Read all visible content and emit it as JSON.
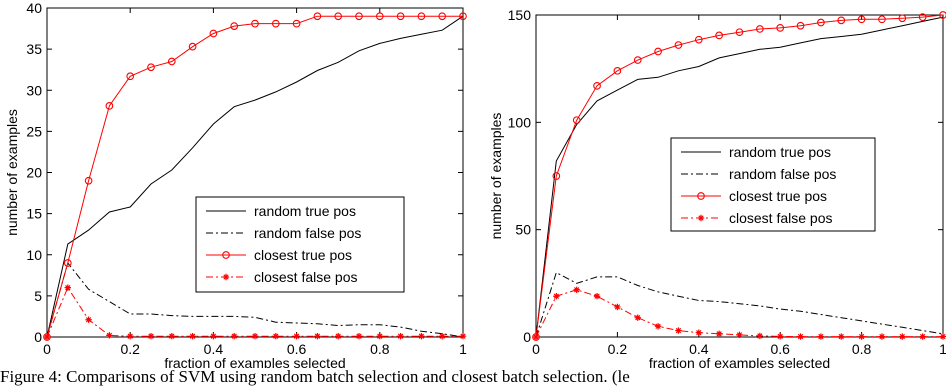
{
  "caption": "Figure 4:  Comparisons of SVM using random batch selection and closest batch selection.  (le",
  "chart_data": [
    {
      "type": "line",
      "xlabel": "fraction of examples selected",
      "ylabel": "number of examples",
      "xlim": [
        0,
        1
      ],
      "ylim": [
        0,
        40
      ],
      "xticks": [
        "0",
        "0.2",
        "0.4",
        "0.6",
        "0.8",
        "1"
      ],
      "yticks": [
        "0",
        "5",
        "10",
        "15",
        "20",
        "25",
        "30",
        "35",
        "40"
      ],
      "legend_position": "center-right",
      "series": [
        {
          "name": "random true pos",
          "color": "#000000",
          "style": "solid",
          "marker": "none",
          "x": [
            0,
            0.05,
            0.1,
            0.15,
            0.2,
            0.25,
            0.3,
            0.35,
            0.4,
            0.45,
            0.5,
            0.55,
            0.6,
            0.65,
            0.7,
            0.75,
            0.8,
            0.85,
            0.9,
            0.95,
            1.0
          ],
          "y": [
            0,
            11.3,
            13,
            15.2,
            15.8,
            18.6,
            20.3,
            23,
            25.9,
            28,
            28.8,
            29.8,
            31,
            32.4,
            33.4,
            34.8,
            35.7,
            36.3,
            36.8,
            37.3,
            39
          ]
        },
        {
          "name": "random false pos",
          "color": "#000000",
          "style": "dashdot",
          "marker": "none",
          "x": [
            0,
            0.05,
            0.1,
            0.15,
            0.2,
            0.25,
            0.3,
            0.35,
            0.4,
            0.45,
            0.5,
            0.55,
            0.6,
            0.65,
            0.7,
            0.75,
            0.8,
            0.85,
            0.9,
            0.95,
            1.0
          ],
          "y": [
            0,
            9,
            5.8,
            4.3,
            2.8,
            2.8,
            2.6,
            2.5,
            2.5,
            2.5,
            2.4,
            1.8,
            1.7,
            1.6,
            1.4,
            1.5,
            1.5,
            1.2,
            0.7,
            0.4,
            0
          ]
        },
        {
          "name": "closest true pos",
          "color": "#ff0000",
          "style": "solid",
          "marker": "circle",
          "x": [
            0,
            0.05,
            0.1,
            0.15,
            0.2,
            0.25,
            0.3,
            0.35,
            0.4,
            0.45,
            0.5,
            0.55,
            0.6,
            0.65,
            0.7,
            0.75,
            0.8,
            0.85,
            0.9,
            0.95,
            1.0
          ],
          "y": [
            0,
            9,
            19,
            28.1,
            31.7,
            32.8,
            33.5,
            35.3,
            36.9,
            37.8,
            38.1,
            38.1,
            38.1,
            39,
            39,
            39,
            39,
            39,
            39,
            39,
            39
          ]
        },
        {
          "name": "closest false pos",
          "color": "#ff0000",
          "style": "dashdot",
          "marker": "star",
          "x": [
            0,
            0.05,
            0.1,
            0.15,
            0.2,
            0.25,
            0.3,
            0.35,
            0.4,
            0.45,
            0.5,
            0.55,
            0.6,
            0.65,
            0.7,
            0.75,
            0.8,
            0.85,
            0.9,
            0.95,
            1.0
          ],
          "y": [
            0,
            6,
            2.1,
            0.2,
            0.1,
            0.1,
            0.1,
            0.1,
            0.1,
            0.1,
            0.1,
            0.1,
            0.1,
            0.1,
            0.1,
            0.1,
            0.1,
            0.1,
            0.1,
            0.1,
            0.1
          ]
        }
      ]
    },
    {
      "type": "line",
      "xlabel": "fraction of examples selected",
      "ylabel": "number of examples",
      "xlim": [
        0,
        1
      ],
      "ylim": [
        0,
        150
      ],
      "xticks": [
        "0",
        "0.2",
        "0.4",
        "0.6",
        "0.8",
        "1"
      ],
      "yticks": [
        "0",
        "50",
        "100",
        "150"
      ],
      "legend_position": "center-right",
      "series": [
        {
          "name": "random true pos",
          "color": "#000000",
          "style": "solid",
          "marker": "none",
          "x": [
            0,
            0.05,
            0.1,
            0.15,
            0.2,
            0.25,
            0.3,
            0.35,
            0.4,
            0.45,
            0.5,
            0.55,
            0.6,
            0.65,
            0.7,
            0.75,
            0.8,
            0.85,
            0.9,
            0.95,
            1.0
          ],
          "y": [
            0,
            82,
            99,
            110,
            115,
            120,
            121,
            124,
            126,
            130,
            132,
            134,
            135,
            137,
            139,
            140,
            141,
            143,
            145,
            147,
            149
          ]
        },
        {
          "name": "random false pos",
          "color": "#000000",
          "style": "dashdot",
          "marker": "none",
          "x": [
            0,
            0.05,
            0.1,
            0.15,
            0.2,
            0.25,
            0.3,
            0.35,
            0.4,
            0.45,
            0.5,
            0.55,
            0.6,
            0.65,
            0.7,
            0.75,
            0.8,
            0.85,
            0.9,
            0.95,
            1.0
          ],
          "y": [
            0,
            30,
            25,
            28,
            28,
            24,
            21,
            19,
            17,
            16.5,
            15.5,
            14.5,
            13,
            12,
            10.5,
            9,
            7.5,
            6,
            4.5,
            3,
            1.5
          ]
        },
        {
          "name": "closest true pos",
          "color": "#ff0000",
          "style": "solid",
          "marker": "circle",
          "x": [
            0,
            0.05,
            0.1,
            0.15,
            0.2,
            0.25,
            0.3,
            0.35,
            0.4,
            0.45,
            0.5,
            0.55,
            0.6,
            0.65,
            0.7,
            0.75,
            0.8,
            0.85,
            0.9,
            0.95,
            1.0
          ],
          "y": [
            0,
            75,
            101,
            117,
            124,
            129,
            133,
            136,
            138.5,
            140.5,
            142,
            143.5,
            144,
            145,
            146.5,
            147.5,
            148,
            148,
            148.5,
            149,
            150
          ]
        },
        {
          "name": "closest false pos",
          "color": "#ff0000",
          "style": "dashdot",
          "marker": "star",
          "x": [
            0,
            0.05,
            0.1,
            0.15,
            0.2,
            0.25,
            0.3,
            0.35,
            0.4,
            0.45,
            0.5,
            0.55,
            0.6,
            0.65,
            0.7,
            0.75,
            0.8,
            0.85,
            0.9,
            0.95,
            1.0
          ],
          "y": [
            0,
            19,
            22,
            19,
            14,
            9,
            5,
            3,
            2,
            1.5,
            1,
            0.5,
            0.3,
            0.2,
            0.2,
            0.2,
            0.2,
            0.2,
            0.2,
            0.2,
            0.2
          ]
        }
      ]
    }
  ]
}
